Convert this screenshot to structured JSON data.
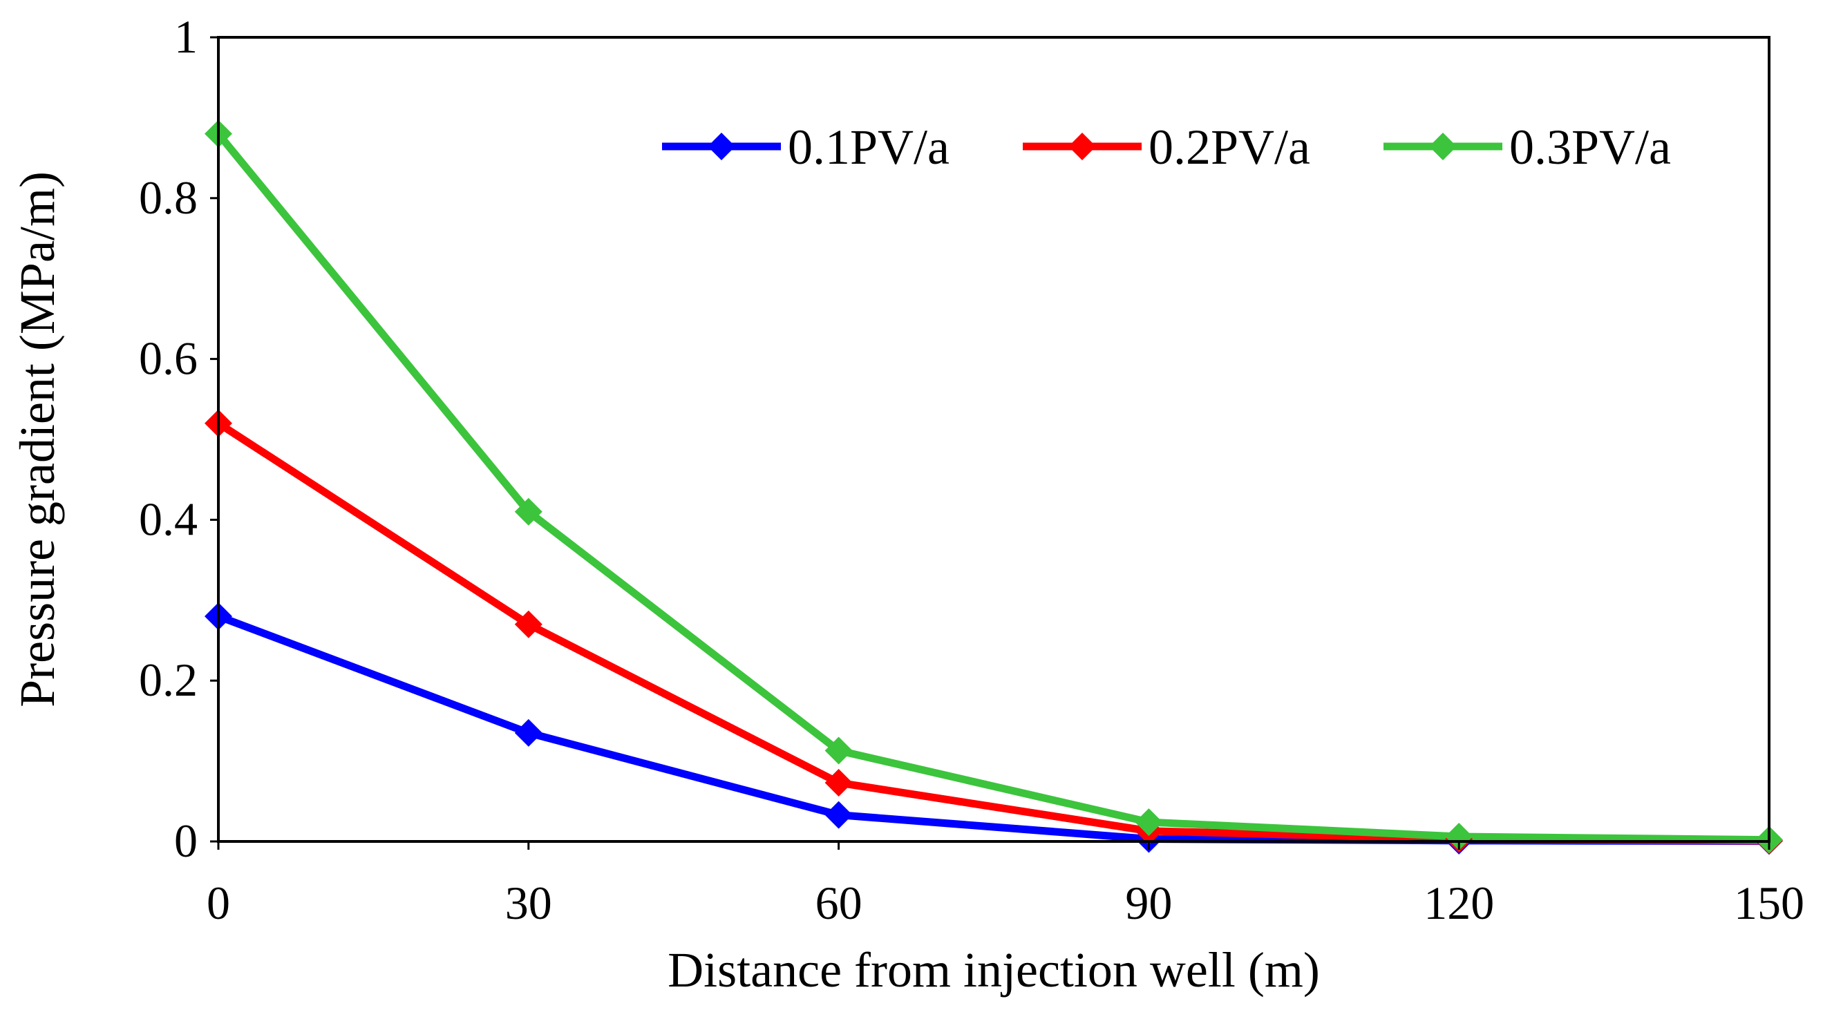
{
  "chart_data": {
    "type": "line",
    "title": "",
    "xlabel": "Distance from injection well (m)",
    "ylabel": "Pressure gradient (MPa/m)",
    "x": [
      0,
      30,
      60,
      90,
      120,
      150
    ],
    "xlim": [
      0,
      150
    ],
    "ylim": [
      0,
      1
    ],
    "xticks": [
      0,
      30,
      60,
      90,
      120,
      150
    ],
    "xtick_labels": [
      "0",
      "30",
      "60",
      "90",
      "120",
      "150"
    ],
    "yticks": [
      0,
      0.2,
      0.4,
      0.6,
      0.8,
      1
    ],
    "ytick_labels": [
      "0",
      "0.2",
      "0.4",
      "0.6",
      "0.8",
      "1"
    ],
    "grid": false,
    "legend_position": "top-right",
    "marker": "diamond",
    "series": [
      {
        "name": "0.1PV/a",
        "color": "#0000FF",
        "values": [
          0.28,
          0.135,
          0.033,
          0.003,
          0.001,
          0.0005
        ]
      },
      {
        "name": "0.2PV/a",
        "color": "#FF0000",
        "values": [
          0.52,
          0.27,
          0.073,
          0.013,
          0.003,
          0.001
        ]
      },
      {
        "name": "0.3PV/a",
        "color": "#3CC43C",
        "values": [
          0.88,
          0.41,
          0.113,
          0.024,
          0.006,
          0.002
        ]
      }
    ]
  }
}
